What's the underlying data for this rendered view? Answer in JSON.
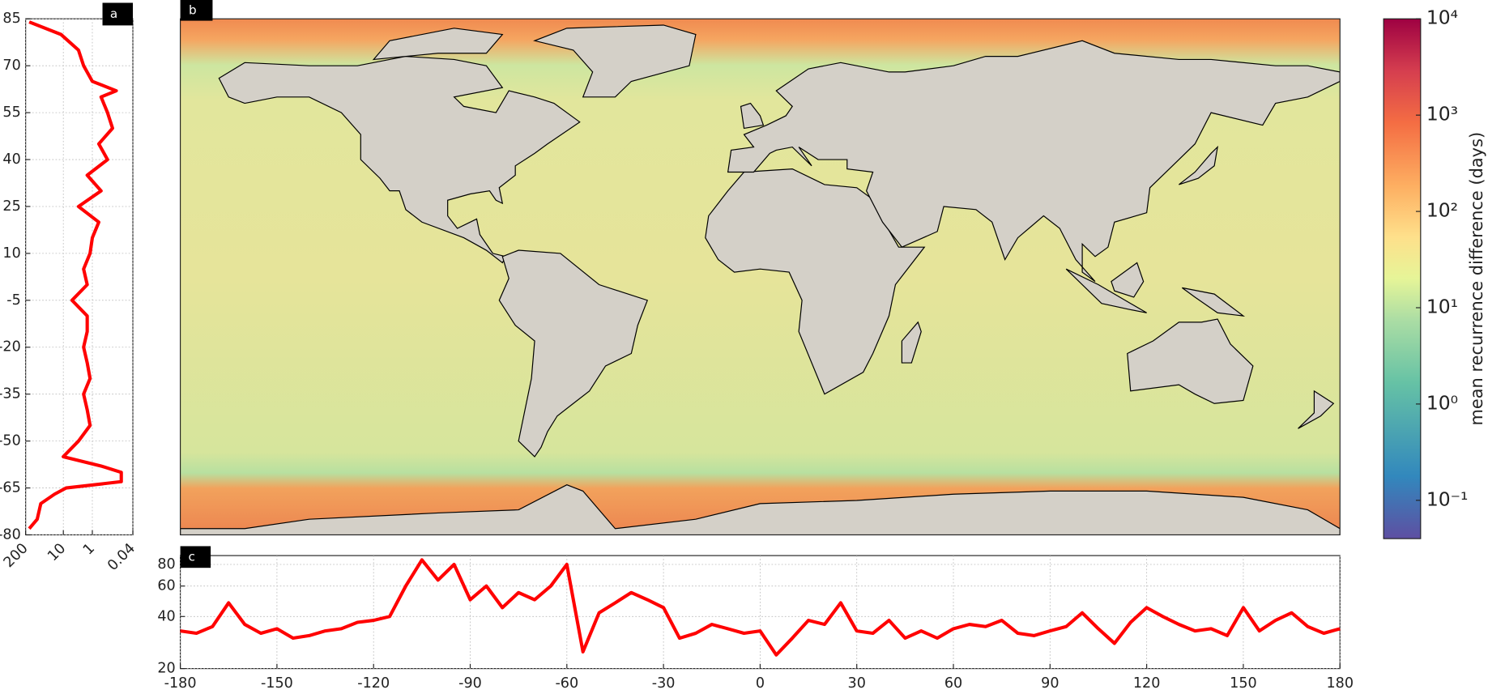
{
  "chart_data": [
    {
      "type": "line",
      "panel_label": "a",
      "color": "#ff0000",
      "grid": true,
      "y": [
        84,
        80,
        75,
        70,
        65,
        62,
        60,
        55,
        50,
        45,
        40,
        35,
        30,
        25,
        20,
        15,
        10,
        5,
        0,
        -5,
        -10,
        -15,
        -20,
        -25,
        -30,
        -35,
        -40,
        -45,
        -50,
        -55,
        -58,
        -60,
        -63,
        -65,
        -67,
        -70,
        -75,
        -78
      ],
      "values": [
        150,
        12,
        3,
        2,
        1,
        0.15,
        0.5,
        0.3,
        0.2,
        0.6,
        0.3,
        1.5,
        0.5,
        3,
        0.6,
        1,
        1.2,
        2,
        1.5,
        5,
        1.5,
        1.5,
        2,
        1.5,
        1.2,
        2,
        1.5,
        1.2,
        3,
        10,
        0.5,
        0.1,
        0.1,
        8,
        20,
        60,
        80,
        150
      ],
      "xlim": [
        200,
        0.04
      ],
      "xscale": "log",
      "xticks": [
        200,
        10,
        1,
        0.04
      ],
      "ylim": [
        -80,
        85
      ],
      "yticks": [
        85,
        70,
        55,
        40,
        25,
        10,
        -5,
        -20,
        -35,
        -50,
        -65,
        -80
      ]
    },
    {
      "type": "map",
      "panel_label": "b",
      "colorbar": {
        "label": "mean recurrence difference (days)",
        "scale": "log",
        "lim": [
          0.04,
          10000
        ],
        "ticks": [
          {
            "value": 0.1,
            "label": "10⁻¹"
          },
          {
            "value": 1,
            "label": "10⁰"
          },
          {
            "value": 10,
            "label": "10¹"
          },
          {
            "value": 100,
            "label": "10²"
          },
          {
            "value": 1000,
            "label": "10³"
          },
          {
            "value": 10000,
            "label": "10⁴"
          }
        ]
      }
    },
    {
      "type": "line",
      "panel_label": "c",
      "color": "#ff0000",
      "grid": true,
      "x": [
        -180,
        -175,
        -170,
        -165,
        -160,
        -155,
        -150,
        -145,
        -140,
        -135,
        -130,
        -125,
        -120,
        -115,
        -110,
        -105,
        -100,
        -95,
        -90,
        -85,
        -80,
        -75,
        -70,
        -65,
        -60,
        -55,
        -50,
        -45,
        -40,
        -35,
        -30,
        -25,
        -20,
        -15,
        -10,
        -5,
        0,
        5,
        10,
        15,
        20,
        25,
        30,
        35,
        40,
        45,
        50,
        55,
        60,
        65,
        70,
        75,
        80,
        85,
        90,
        95,
        100,
        105,
        110,
        115,
        120,
        125,
        130,
        135,
        140,
        145,
        150,
        155,
        160,
        165,
        170,
        175,
        180
      ],
      "values": [
        33,
        32,
        35,
        48,
        36,
        32,
        34,
        30,
        31,
        33,
        34,
        37,
        38,
        40,
        60,
        85,
        65,
        80,
        50,
        60,
        45,
        55,
        50,
        60,
        80,
        25,
        42,
        48,
        55,
        50,
        45,
        30,
        32,
        36,
        34,
        32,
        33,
        24,
        30,
        38,
        36,
        48,
        33,
        32,
        38,
        30,
        33,
        30,
        34,
        36,
        35,
        38,
        32,
        31,
        33,
        35,
        42,
        34,
        28,
        37,
        45,
        40,
        36,
        33,
        34,
        31,
        45,
        33,
        38,
        42,
        35,
        32,
        34
      ],
      "xlim": [
        -180,
        180
      ],
      "xticks": [
        -180,
        -150,
        -120,
        -90,
        -60,
        -30,
        0,
        30,
        60,
        90,
        120,
        150,
        180
      ],
      "ylim": [
        20,
        90
      ],
      "yscale": "log",
      "yticks": [
        20,
        40,
        60,
        80
      ]
    }
  ]
}
